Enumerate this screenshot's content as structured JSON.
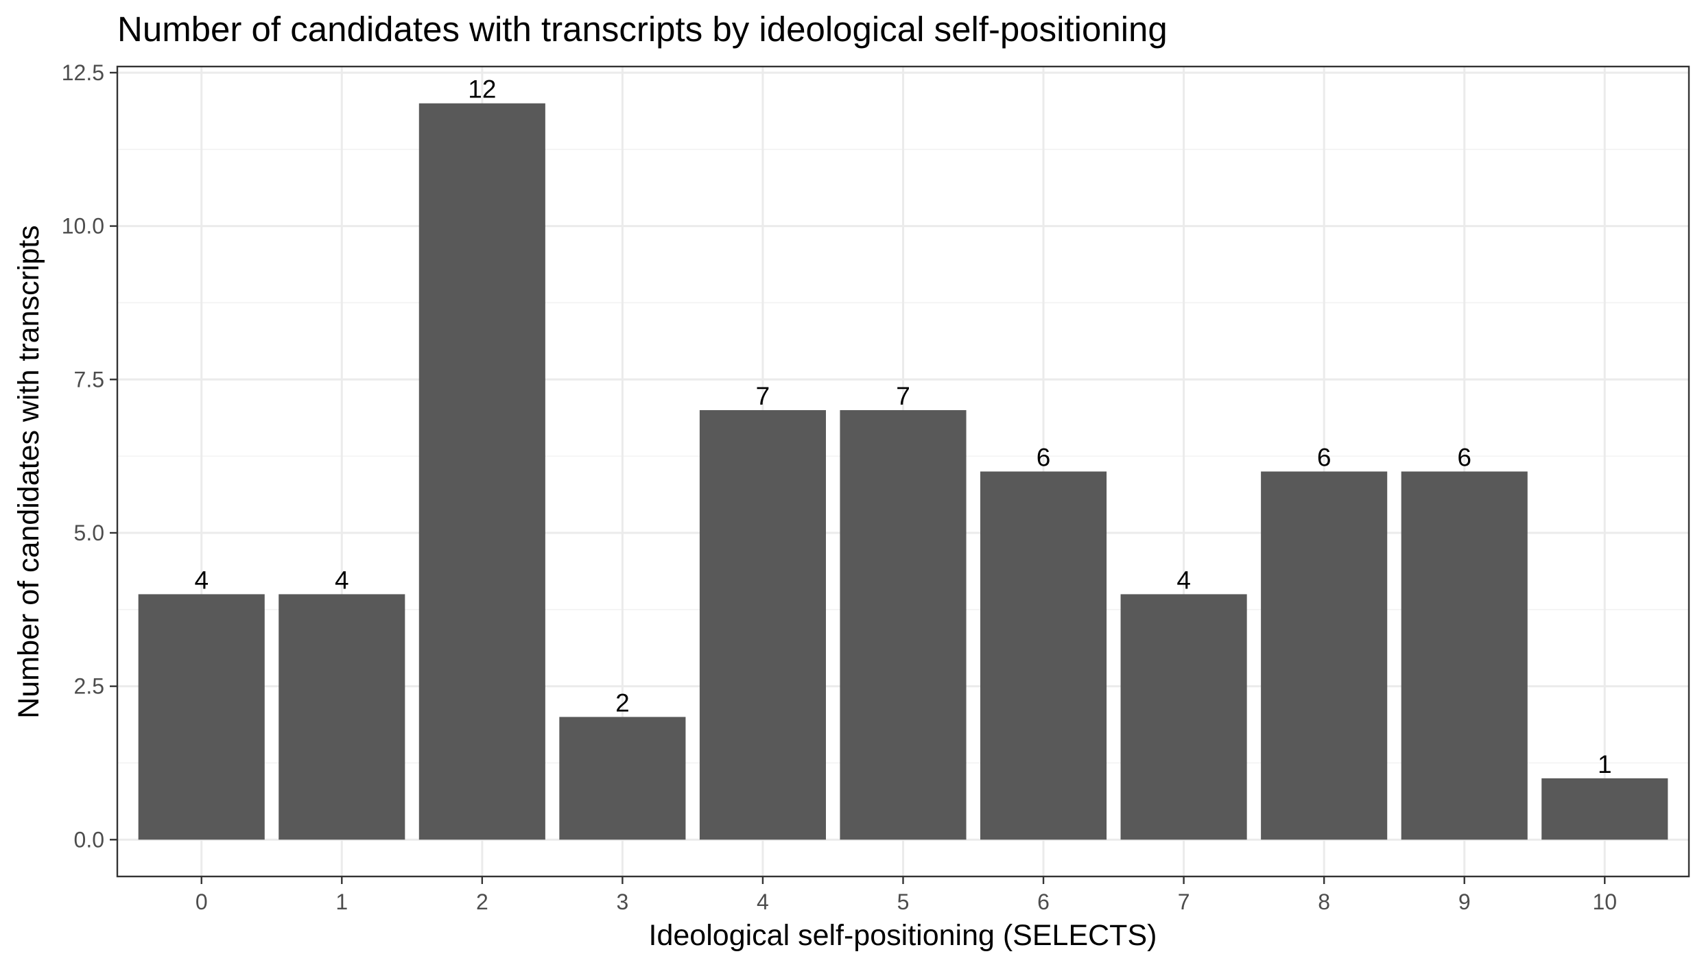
{
  "chart_data": {
    "type": "bar",
    "title": "Number of candidates with transcripts by ideological self-positioning",
    "xlabel": "Ideological self-positioning (SELECTS)",
    "ylabel": "Number of candidates with transcripts",
    "categories": [
      "0",
      "1",
      "2",
      "3",
      "4",
      "5",
      "6",
      "7",
      "8",
      "9",
      "10"
    ],
    "values": [
      4,
      4,
      12,
      2,
      7,
      7,
      6,
      4,
      6,
      6,
      1
    ],
    "data_labels": [
      "4",
      "4",
      "12",
      "2",
      "7",
      "7",
      "6",
      "4",
      "6",
      "6",
      "1"
    ],
    "ylim": [
      -0.6,
      12.6
    ],
    "yticks": [
      0,
      2.5,
      5,
      7.5,
      10,
      12.5
    ],
    "ytick_labels": [
      "0.0",
      "2.5",
      "5.0",
      "7.5",
      "10.0",
      "12.5"
    ],
    "grid": true,
    "legend": "none",
    "bar_color": "#595959"
  }
}
